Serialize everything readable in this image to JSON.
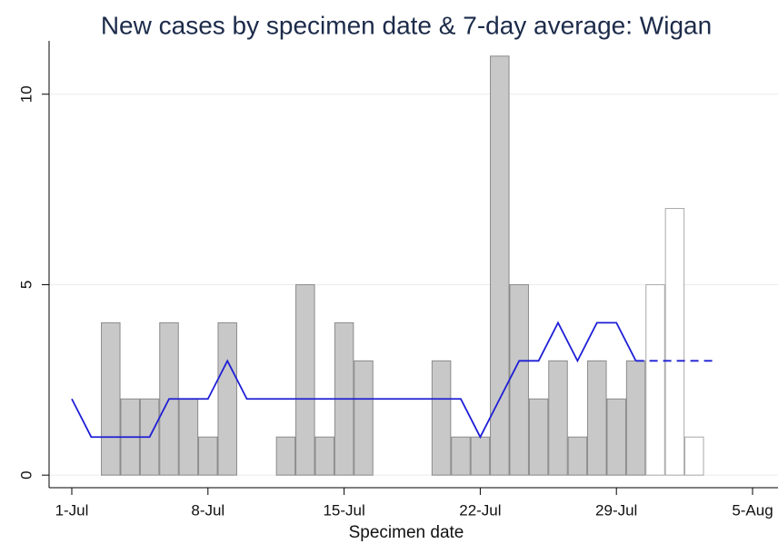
{
  "chart_data": {
    "type": "bar",
    "title": "New cases by specimen date & 7-day average: Wigan",
    "x_label": "Specimen date",
    "categories": [
      "1-Jul",
      null,
      null,
      null,
      null,
      null,
      null,
      "8-Jul",
      null,
      null,
      null,
      null,
      null,
      null,
      "15-Jul",
      null,
      null,
      null,
      null,
      null,
      null,
      "22-Jul",
      null,
      null,
      null,
      null,
      null,
      null,
      "29-Jul",
      null,
      null,
      null,
      null,
      null,
      null,
      "5-Aug"
    ],
    "ylim": [
      -0.33,
      11.4
    ],
    "yticks": [
      0,
      5,
      10
    ],
    "grid": true,
    "series": [
      {
        "type": "bar",
        "color": "#c8c8c8",
        "edge": "#8a8a8a",
        "values": [
          null,
          null,
          4,
          2,
          2,
          4,
          2,
          1,
          4,
          0,
          0,
          1,
          5,
          1,
          4,
          3,
          0,
          0,
          0,
          3,
          1,
          1,
          11,
          5,
          2,
          3,
          1,
          3,
          2,
          3,
          null,
          null,
          null,
          null,
          null,
          null
        ]
      },
      {
        "type": "bar",
        "color": "#ffffff",
        "edge": "#a8a8a8",
        "values": [
          null,
          null,
          null,
          null,
          null,
          null,
          null,
          null,
          null,
          null,
          null,
          null,
          null,
          null,
          null,
          null,
          null,
          null,
          null,
          null,
          null,
          null,
          null,
          null,
          null,
          null,
          null,
          null,
          null,
          null,
          5,
          7,
          1,
          null,
          null,
          null
        ]
      },
      {
        "type": "line",
        "color": "#1f1fd6",
        "dashed": false,
        "values": [
          2,
          1,
          1,
          1,
          1,
          2,
          2,
          2,
          3,
          2,
          2,
          2,
          2,
          2,
          2,
          2,
          2,
          2,
          2,
          2,
          2,
          1,
          2,
          3,
          3,
          4,
          3,
          4,
          4,
          3,
          null,
          null,
          null,
          null,
          null,
          null
        ]
      },
      {
        "type": "line",
        "color": "#1f1fd6",
        "dashed": true,
        "values": [
          null,
          null,
          null,
          null,
          null,
          null,
          null,
          null,
          null,
          null,
          null,
          null,
          null,
          null,
          null,
          null,
          null,
          null,
          null,
          null,
          null,
          null,
          null,
          null,
          null,
          null,
          null,
          null,
          null,
          3,
          3,
          3,
          3,
          3,
          null,
          null
        ]
      }
    ]
  }
}
